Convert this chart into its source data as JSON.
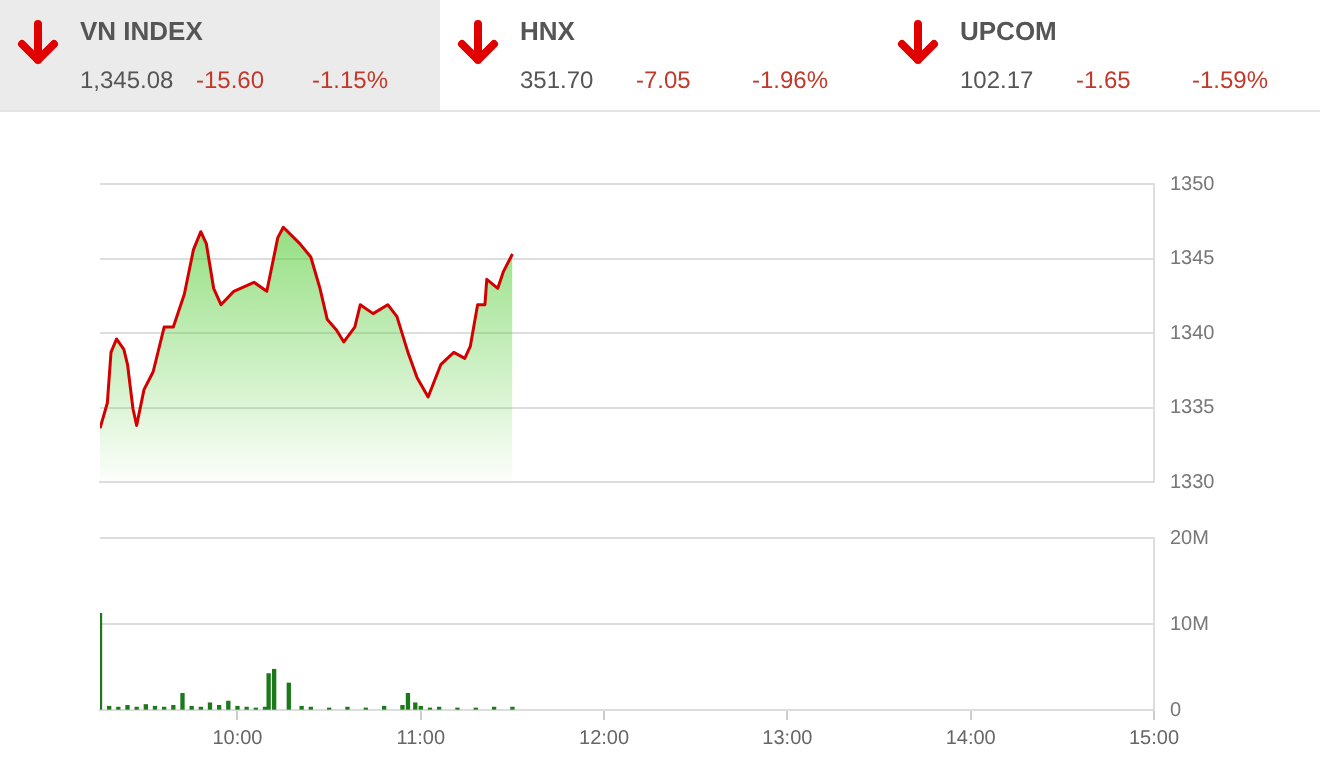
{
  "chart_data": [
    {
      "type": "other",
      "annotations": [
        "VN INDEX",
        "1,345.08",
        "-15.60",
        "-1.15%",
        "HNX",
        "351.70",
        "-7.05",
        "-1.96%",
        "UPCOM",
        "102.17",
        "-1.65",
        "-1.59%"
      ]
    },
    {
      "type": "area",
      "color": "#d40000",
      "xlim": [
        9.25,
        15
      ],
      "ylim": [
        1330,
        1350
      ],
      "yticks": [
        1330,
        1335,
        1340,
        1345,
        1350
      ],
      "grid": "y",
      "tick_labels": "y",
      "x": [
        9.25,
        9.29,
        9.31,
        9.34,
        9.38,
        9.4,
        9.43,
        9.45,
        9.49,
        9.54,
        9.6,
        9.65,
        9.71,
        9.76,
        9.8,
        9.83,
        9.87,
        9.91,
        9.98,
        10.09,
        10.16,
        10.22,
        10.25,
        10.34,
        10.4,
        10.45,
        10.49,
        10.54,
        10.58,
        10.64,
        10.67,
        10.74,
        10.82,
        10.87,
        10.93,
        10.98,
        11.04,
        11.11,
        11.18,
        11.24,
        11.27,
        11.31,
        11.35,
        11.36,
        11.42,
        11.45,
        11.5
      ],
      "values": [
        1333.6,
        1335.3,
        1338.7,
        1339.6,
        1338.9,
        1337.9,
        1334.9,
        1333.8,
        1336.2,
        1337.4,
        1340.4,
        1340.4,
        1342.6,
        1345.6,
        1346.8,
        1346.0,
        1343.0,
        1341.9,
        1342.8,
        1343.4,
        1342.8,
        1346.4,
        1347.1,
        1346.0,
        1345.1,
        1343.0,
        1340.9,
        1340.2,
        1339.4,
        1340.4,
        1341.9,
        1341.3,
        1341.9,
        1341.1,
        1338.7,
        1337.0,
        1335.7,
        1337.9,
        1338.7,
        1338.3,
        1339.1,
        1341.9,
        1341.9,
        1343.6,
        1343.0,
        1344.1,
        1345.3
      ]
    },
    {
      "type": "bar",
      "color": "#1a7a1a",
      "xlim": [
        9.25,
        15
      ],
      "xticks": [
        {
          "value": 10,
          "label": "10:00"
        },
        {
          "value": 11,
          "label": "11:00"
        },
        {
          "value": 12,
          "label": "12:00"
        },
        {
          "value": 13,
          "label": "13:00"
        },
        {
          "value": 14,
          "label": "14:00"
        },
        {
          "value": 15,
          "label": "15:00"
        }
      ],
      "ylim": [
        0,
        20
      ],
      "yticks": [
        0,
        {
          "value": 10,
          "label": "10M"
        },
        {
          "value": 20,
          "label": "20M"
        }
      ],
      "grid": "y",
      "x": [
        9.25,
        9.3,
        9.35,
        9.4,
        9.45,
        9.5,
        9.55,
        9.6,
        9.65,
        9.7,
        9.75,
        9.8,
        9.85,
        9.9,
        9.95,
        10.0,
        10.05,
        10.1,
        10.15,
        10.17,
        10.2,
        10.28,
        10.35,
        10.4,
        10.5,
        10.6,
        10.7,
        10.8,
        10.9,
        10.93,
        10.97,
        11.0,
        11.05,
        11.1,
        11.2,
        11.3,
        11.4,
        11.5
      ],
      "values": [
        11.2,
        0.4,
        0.3,
        0.5,
        0.3,
        0.6,
        0.4,
        0.3,
        0.5,
        1.9,
        0.4,
        0.3,
        0.8,
        0.5,
        1.0,
        0.4,
        0.3,
        0.2,
        0.3,
        4.2,
        4.7,
        3.1,
        0.4,
        0.3,
        0.2,
        0.3,
        0.2,
        0.4,
        0.5,
        1.9,
        0.8,
        0.4,
        0.2,
        0.3,
        0.2,
        0.2,
        0.3,
        0.3
      ]
    }
  ]
}
